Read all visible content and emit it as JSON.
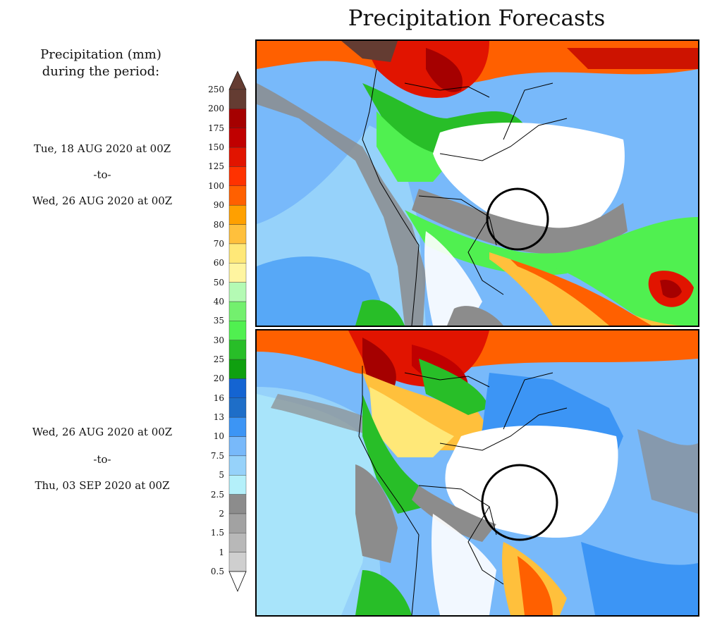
{
  "title": "Precipitation Forecasts",
  "legend": {
    "title_line1": "Precipitation (mm)",
    "title_line2": "during the period:",
    "units": "mm",
    "ticks": [
      "0.5",
      "1",
      "1.5",
      "2",
      "2.5",
      "5",
      "7.5",
      "10",
      "13",
      "16",
      "20",
      "25",
      "30",
      "35",
      "40",
      "50",
      "60",
      "70",
      "80",
      "90",
      "100",
      "125",
      "150",
      "175",
      "200",
      "250"
    ],
    "bin_colors": [
      "#e6e6e6",
      "#cfcfcf",
      "#b8b8b8",
      "#a2a2a2",
      "#8c8c8c",
      "#b4f0fa",
      "#96d2fa",
      "#78b9fa",
      "#3c95f5",
      "#1e6ec8",
      "#1464d2",
      "#0fa00f",
      "#28be28",
      "#50f050",
      "#73f06e",
      "#b4fab4",
      "#fff5a0",
      "#ffe878",
      "#ffc03c",
      "#ffa000",
      "#ff6000",
      "#ff3200",
      "#e11400",
      "#c00000",
      "#a50000",
      "#643c32"
    ]
  },
  "periods": [
    {
      "start": "Tue, 18 AUG 2020 at 00Z",
      "sep": "-to-",
      "end": "Wed, 26 AUG 2020 at 00Z"
    },
    {
      "start": "Wed, 26 AUG 2020 at 00Z",
      "sep": "-to-",
      "end": "Thu, 03 SEP 2020 at 00Z"
    }
  ],
  "maps": [
    {
      "region": "South America",
      "highlight": "black-circle-annotation"
    },
    {
      "region": "South America",
      "highlight": "black-circle-annotation"
    }
  ],
  "colors": {
    "circle": "#000000",
    "borders": "#000000",
    "frame": "#000000"
  }
}
